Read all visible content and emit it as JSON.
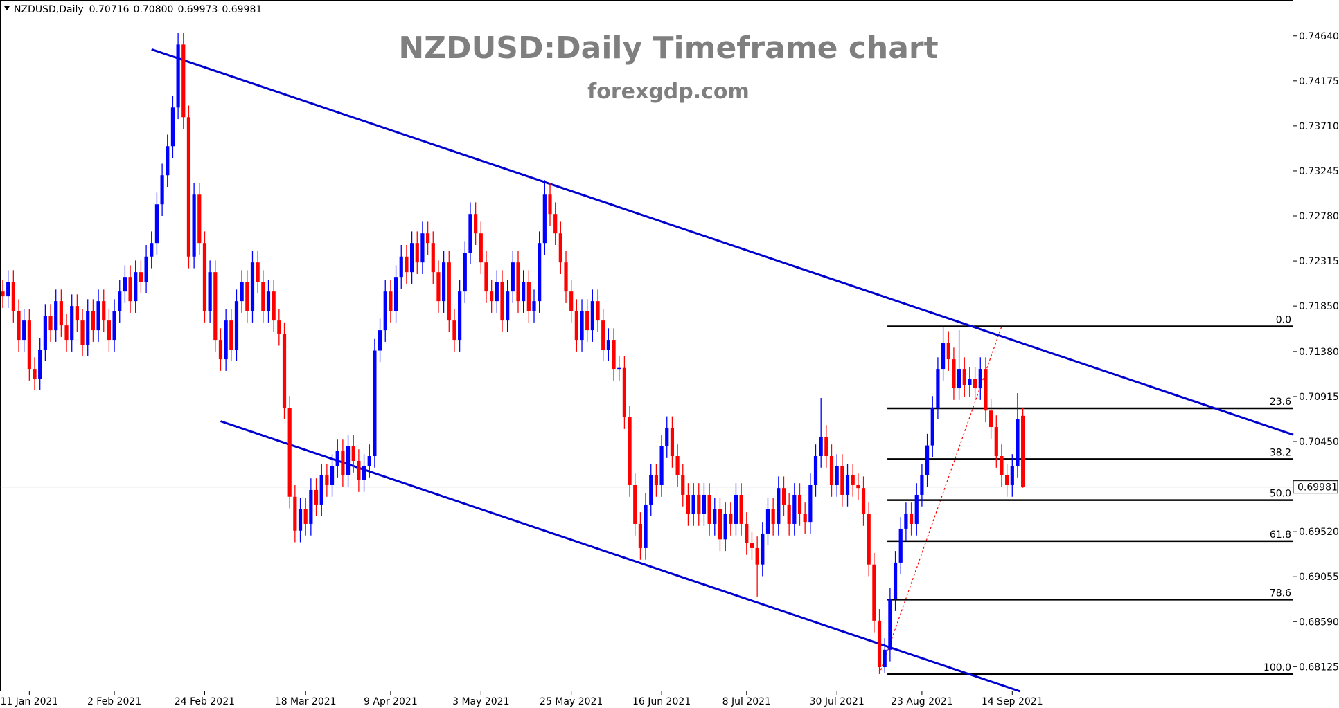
{
  "chart_data": {
    "type": "candlestick",
    "title": "NZDUSD:Daily Timeframe chart",
    "subtitle": "forexgdp.com",
    "symbol": "NZDUSD,Daily",
    "header_labels": [
      "0.70716",
      "0.70800",
      "0.69973",
      "0.69981"
    ],
    "categories": [
      null,
      null,
      null,
      null,
      null,
      "11 Jan 2021",
      null,
      null,
      null,
      null,
      null,
      null,
      null,
      null,
      null,
      null,
      null,
      null,
      null,
      null,
      null,
      "2 Feb 2021",
      null,
      null,
      null,
      null,
      null,
      null,
      null,
      null,
      null,
      null,
      null,
      null,
      null,
      null,
      null,
      null,
      "24 Feb 2021",
      null,
      null,
      null,
      null,
      null,
      null,
      null,
      null,
      null,
      null,
      null,
      null,
      null,
      null,
      null,
      null,
      null,
      null,
      "18 Mar 2021",
      null,
      null,
      null,
      null,
      null,
      null,
      null,
      null,
      null,
      null,
      null,
      null,
      null,
      null,
      null,
      "9 Apr 2021",
      null,
      null,
      null,
      null,
      null,
      null,
      null,
      null,
      null,
      null,
      null,
      null,
      null,
      null,
      null,
      null,
      "3 May 2021",
      null,
      null,
      null,
      null,
      null,
      null,
      null,
      null,
      null,
      null,
      null,
      null,
      null,
      null,
      null,
      null,
      "25 May 2021",
      null,
      null,
      null,
      null,
      null,
      null,
      null,
      null,
      null,
      null,
      null,
      null,
      null,
      null,
      null,
      null,
      "16 Jun 2021",
      null,
      null,
      null,
      null,
      null,
      null,
      null,
      null,
      null,
      null,
      null,
      null,
      null,
      null,
      null,
      "8 Jul 2021",
      null,
      null,
      null,
      null,
      null,
      null,
      null,
      null,
      null,
      null,
      null,
      null,
      null,
      null,
      null,
      null,
      "30 Jul 2021",
      null,
      null,
      null,
      null,
      null,
      null,
      null,
      null,
      null,
      null,
      null,
      null,
      null,
      null,
      null,
      "23 Aug 2021",
      null,
      null,
      null,
      null,
      null,
      null,
      null,
      null,
      null,
      null,
      null,
      null,
      null,
      null,
      null,
      null,
      "14 Sep 2021",
      null,
      null,
      null
    ],
    "candles": [
      [
        0.72,
        0.7212,
        0.7183,
        0.7195
      ],
      [
        0.7195,
        0.7222,
        0.7183,
        0.721
      ],
      [
        0.721,
        0.7222,
        0.7168,
        0.718
      ],
      [
        0.718,
        0.7192,
        0.7138,
        0.715
      ],
      [
        0.715,
        0.7182,
        0.7138,
        0.717
      ],
      [
        0.717,
        0.7182,
        0.7108,
        0.712
      ],
      [
        0.712,
        0.7132,
        0.7098,
        0.711
      ],
      [
        0.711,
        0.7152,
        0.7098,
        0.714
      ],
      [
        0.714,
        0.7187,
        0.7128,
        0.7175
      ],
      [
        0.7175,
        0.7187,
        0.7148,
        0.716
      ],
      [
        0.716,
        0.7202,
        0.7148,
        0.719
      ],
      [
        0.719,
        0.7202,
        0.7153,
        0.7165
      ],
      [
        0.7165,
        0.7177,
        0.7138,
        0.715
      ],
      [
        0.715,
        0.7197,
        0.7138,
        0.7185
      ],
      [
        0.7185,
        0.7197,
        0.7158,
        0.717
      ],
      [
        0.717,
        0.7182,
        0.7133,
        0.7145
      ],
      [
        0.7145,
        0.7192,
        0.7133,
        0.718
      ],
      [
        0.718,
        0.7192,
        0.7148,
        0.716
      ],
      [
        0.716,
        0.7202,
        0.7148,
        0.719
      ],
      [
        0.719,
        0.7202,
        0.7158,
        0.717
      ],
      [
        0.717,
        0.7182,
        0.7138,
        0.715
      ],
      [
        0.715,
        0.7192,
        0.7138,
        0.718
      ],
      [
        0.718,
        0.7212,
        0.7168,
        0.72
      ],
      [
        0.72,
        0.7227,
        0.7188,
        0.7215
      ],
      [
        0.7215,
        0.7227,
        0.7178,
        0.719
      ],
      [
        0.719,
        0.7232,
        0.7178,
        0.722
      ],
      [
        0.722,
        0.7232,
        0.7198,
        0.721
      ],
      [
        0.721,
        0.7248,
        0.7198,
        0.7236
      ],
      [
        0.7236,
        0.7262,
        0.7224,
        0.725
      ],
      [
        0.725,
        0.7302,
        0.7238,
        0.729
      ],
      [
        0.729,
        0.7332,
        0.7278,
        0.732
      ],
      [
        0.732,
        0.7362,
        0.7308,
        0.735
      ],
      [
        0.735,
        0.7402,
        0.7338,
        0.739
      ],
      [
        0.739,
        0.7467,
        0.7378,
        0.7455
      ],
      [
        0.7455,
        0.7467,
        0.7368,
        0.738
      ],
      [
        0.738,
        0.7392,
        0.7224,
        0.7236
      ],
      [
        0.7236,
        0.7312,
        0.7224,
        0.73
      ],
      [
        0.73,
        0.7312,
        0.7238,
        0.725
      ],
      [
        0.725,
        0.7262,
        0.7168,
        0.718
      ],
      [
        0.718,
        0.7232,
        0.7168,
        0.722
      ],
      [
        0.722,
        0.7232,
        0.7138,
        0.715
      ],
      [
        0.715,
        0.7162,
        0.7118,
        0.713
      ],
      [
        0.713,
        0.7182,
        0.7118,
        0.717
      ],
      [
        0.717,
        0.7182,
        0.7128,
        0.714
      ],
      [
        0.714,
        0.7202,
        0.7128,
        0.719
      ],
      [
        0.719,
        0.7222,
        0.7178,
        0.721
      ],
      [
        0.721,
        0.7222,
        0.7168,
        0.718
      ],
      [
        0.718,
        0.7242,
        0.7168,
        0.723
      ],
      [
        0.723,
        0.7242,
        0.7198,
        0.721
      ],
      [
        0.721,
        0.7222,
        0.7168,
        0.718
      ],
      [
        0.718,
        0.7212,
        0.7168,
        0.72
      ],
      [
        0.72,
        0.7212,
        0.7158,
        0.717
      ],
      [
        0.717,
        0.7182,
        0.7144,
        0.7156
      ],
      [
        0.7156,
        0.7168,
        0.7068,
        0.708
      ],
      [
        0.708,
        0.7092,
        0.6976,
        0.6988
      ],
      [
        0.6988,
        0.7,
        0.6941,
        0.6953
      ],
      [
        0.6953,
        0.6987,
        0.6941,
        0.6975
      ],
      [
        0.6975,
        0.6987,
        0.6948,
        0.696
      ],
      [
        0.696,
        0.7007,
        0.6948,
        0.6995
      ],
      [
        0.6995,
        0.7007,
        0.6968,
        0.698
      ],
      [
        0.698,
        0.7022,
        0.6968,
        0.701
      ],
      [
        0.701,
        0.7022,
        0.6988,
        0.7
      ],
      [
        0.7,
        0.7032,
        0.6988,
        0.702
      ],
      [
        0.702,
        0.7047,
        0.7008,
        0.7035
      ],
      [
        0.7035,
        0.7047,
        0.6998,
        0.701
      ],
      [
        0.701,
        0.7052,
        0.6998,
        0.704
      ],
      [
        0.704,
        0.7052,
        0.7013,
        0.7025
      ],
      [
        0.7025,
        0.7037,
        0.6993,
        0.7005
      ],
      [
        0.7005,
        0.7032,
        0.6993,
        0.702
      ],
      [
        0.702,
        0.7042,
        0.7008,
        0.703
      ],
      [
        0.703,
        0.7151,
        0.7018,
        0.7139
      ],
      [
        0.7139,
        0.7172,
        0.7127,
        0.716
      ],
      [
        0.716,
        0.7212,
        0.7148,
        0.72
      ],
      [
        0.72,
        0.7212,
        0.7168,
        0.718
      ],
      [
        0.718,
        0.7227,
        0.7168,
        0.7215
      ],
      [
        0.7215,
        0.7248,
        0.7203,
        0.7236
      ],
      [
        0.7236,
        0.7248,
        0.7208,
        0.722
      ],
      [
        0.722,
        0.7262,
        0.7208,
        0.725
      ],
      [
        0.725,
        0.7262,
        0.7218,
        0.723
      ],
      [
        0.723,
        0.7272,
        0.7218,
        0.726
      ],
      [
        0.726,
        0.7272,
        0.7238,
        0.725
      ],
      [
        0.725,
        0.7262,
        0.7208,
        0.722
      ],
      [
        0.722,
        0.7232,
        0.7178,
        0.719
      ],
      [
        0.719,
        0.7242,
        0.7178,
        0.723
      ],
      [
        0.723,
        0.7242,
        0.7158,
        0.717
      ],
      [
        0.717,
        0.7182,
        0.7138,
        0.715
      ],
      [
        0.715,
        0.7212,
        0.7138,
        0.72
      ],
      [
        0.72,
        0.7252,
        0.7188,
        0.724
      ],
      [
        0.724,
        0.7292,
        0.7228,
        0.728
      ],
      [
        0.728,
        0.7292,
        0.7248,
        0.726
      ],
      [
        0.726,
        0.7272,
        0.7218,
        0.723
      ],
      [
        0.723,
        0.7242,
        0.7188,
        0.72
      ],
      [
        0.72,
        0.7212,
        0.7178,
        0.719
      ],
      [
        0.719,
        0.7222,
        0.7178,
        0.721
      ],
      [
        0.721,
        0.7222,
        0.7158,
        0.717
      ],
      [
        0.717,
        0.7212,
        0.7158,
        0.72
      ],
      [
        0.72,
        0.7242,
        0.7188,
        0.723
      ],
      [
        0.723,
        0.7242,
        0.7178,
        0.719
      ],
      [
        0.719,
        0.7222,
        0.7178,
        0.721
      ],
      [
        0.721,
        0.7222,
        0.7168,
        0.718
      ],
      [
        0.718,
        0.7202,
        0.7168,
        0.719
      ],
      [
        0.719,
        0.7262,
        0.7178,
        0.725
      ],
      [
        0.725,
        0.7315,
        0.7238,
        0.73
      ],
      [
        0.73,
        0.7312,
        0.7268,
        0.728
      ],
      [
        0.728,
        0.7292,
        0.7248,
        0.726
      ],
      [
        0.726,
        0.7272,
        0.7218,
        0.723
      ],
      [
        0.723,
        0.7242,
        0.7188,
        0.72
      ],
      [
        0.72,
        0.7212,
        0.7168,
        0.718
      ],
      [
        0.718,
        0.7192,
        0.7138,
        0.715
      ],
      [
        0.715,
        0.7192,
        0.7138,
        0.718
      ],
      [
        0.718,
        0.7192,
        0.7148,
        0.716
      ],
      [
        0.716,
        0.7202,
        0.7148,
        0.719
      ],
      [
        0.719,
        0.7202,
        0.7158,
        0.717
      ],
      [
        0.717,
        0.7182,
        0.7128,
        0.714
      ],
      [
        0.714,
        0.7162,
        0.7128,
        0.715
      ],
      [
        0.715,
        0.7162,
        0.7108,
        0.712
      ],
      [
        0.712,
        0.7133,
        0.7108,
        0.7121
      ],
      [
        0.7121,
        0.7133,
        0.7058,
        0.707
      ],
      [
        0.707,
        0.7082,
        0.6988,
        0.7
      ],
      [
        0.7,
        0.7012,
        0.6948,
        0.696
      ],
      [
        0.696,
        0.6972,
        0.6923,
        0.6935
      ],
      [
        0.6935,
        0.6992,
        0.6923,
        0.698
      ],
      [
        0.698,
        0.7022,
        0.6968,
        0.701
      ],
      [
        0.701,
        0.7022,
        0.6988,
        0.7
      ],
      [
        0.7,
        0.7052,
        0.6988,
        0.704
      ],
      [
        0.704,
        0.7071,
        0.7028,
        0.7059
      ],
      [
        0.7059,
        0.7071,
        0.7018,
        0.703
      ],
      [
        0.703,
        0.7042,
        0.6998,
        0.701
      ],
      [
        0.701,
        0.7022,
        0.6978,
        0.699
      ],
      [
        0.699,
        0.7002,
        0.6958,
        0.697
      ],
      [
        0.697,
        0.7002,
        0.6958,
        0.699
      ],
      [
        0.699,
        0.7002,
        0.6958,
        0.697
      ],
      [
        0.697,
        0.7002,
        0.6958,
        0.699
      ],
      [
        0.699,
        0.7002,
        0.6948,
        0.696
      ],
      [
        0.696,
        0.6987,
        0.6948,
        0.6975
      ],
      [
        0.6975,
        0.6987,
        0.6932,
        0.6944
      ],
      [
        0.6944,
        0.6982,
        0.6932,
        0.697
      ],
      [
        0.697,
        0.6982,
        0.6948,
        0.696
      ],
      [
        0.696,
        0.7002,
        0.6948,
        0.699
      ],
      [
        0.699,
        0.7002,
        0.6948,
        0.696
      ],
      [
        0.696,
        0.6972,
        0.6928,
        0.694
      ],
      [
        0.694,
        0.6952,
        0.6923,
        0.6935
      ],
      [
        0.6935,
        0.6947,
        0.6885,
        0.6918
      ],
      [
        0.6918,
        0.6962,
        0.6906,
        0.695
      ],
      [
        0.695,
        0.6987,
        0.6938,
        0.6975
      ],
      [
        0.6975,
        0.6987,
        0.6948,
        0.696
      ],
      [
        0.696,
        0.7009,
        0.6948,
        0.6997
      ],
      [
        0.6997,
        0.7009,
        0.6968,
        0.698
      ],
      [
        0.698,
        0.6992,
        0.6948,
        0.696
      ],
      [
        0.696,
        0.7002,
        0.6948,
        0.699
      ],
      [
        0.699,
        0.7002,
        0.6958,
        0.697
      ],
      [
        0.697,
        0.6982,
        0.695,
        0.6962
      ],
      [
        0.6962,
        0.7012,
        0.695,
        0.7
      ],
      [
        0.7,
        0.7042,
        0.6988,
        0.703
      ],
      [
        0.703,
        0.709,
        0.7018,
        0.705
      ],
      [
        0.705,
        0.7062,
        0.7018,
        0.703
      ],
      [
        0.703,
        0.7042,
        0.6988,
        0.7
      ],
      [
        0.7,
        0.7032,
        0.6988,
        0.702
      ],
      [
        0.702,
        0.7032,
        0.6978,
        0.699
      ],
      [
        0.699,
        0.7022,
        0.6978,
        0.701
      ],
      [
        0.701,
        0.7022,
        0.6988,
        0.7
      ],
      [
        0.7,
        0.7012,
        0.6985,
        0.6997
      ],
      [
        0.6997,
        0.7009,
        0.6958,
        0.697
      ],
      [
        0.697,
        0.6982,
        0.6906,
        0.6918
      ],
      [
        0.6918,
        0.693,
        0.6848,
        0.686
      ],
      [
        0.686,
        0.6872,
        0.6805,
        0.6812
      ],
      [
        0.6812,
        0.6842,
        0.6806,
        0.683
      ],
      [
        0.683,
        0.6894,
        0.6818,
        0.6882
      ],
      [
        0.6882,
        0.6932,
        0.687,
        0.692
      ],
      [
        0.692,
        0.6967,
        0.6908,
        0.6955
      ],
      [
        0.6955,
        0.6982,
        0.6943,
        0.697
      ],
      [
        0.697,
        0.6982,
        0.6948,
        0.696
      ],
      [
        0.696,
        0.7002,
        0.6948,
        0.699
      ],
      [
        0.699,
        0.7022,
        0.6978,
        0.701
      ],
      [
        0.701,
        0.7053,
        0.6998,
        0.7041
      ],
      [
        0.7041,
        0.7092,
        0.7029,
        0.708
      ],
      [
        0.708,
        0.7132,
        0.7068,
        0.712
      ],
      [
        0.712,
        0.7164,
        0.7108,
        0.7147
      ],
      [
        0.7147,
        0.7159,
        0.7118,
        0.713
      ],
      [
        0.713,
        0.7142,
        0.7088,
        0.71
      ],
      [
        0.71,
        0.716,
        0.7088,
        0.712
      ],
      [
        0.712,
        0.7132,
        0.7091,
        0.7103
      ],
      [
        0.7103,
        0.7122,
        0.7091,
        0.711
      ],
      [
        0.711,
        0.7122,
        0.7088,
        0.71
      ],
      [
        0.71,
        0.7132,
        0.7088,
        0.712
      ],
      [
        0.712,
        0.7132,
        0.7065,
        0.7077
      ],
      [
        0.7077,
        0.7089,
        0.7048,
        0.706
      ],
      [
        0.706,
        0.7072,
        0.7018,
        0.703
      ],
      [
        0.703,
        0.7042,
        0.6998,
        0.701
      ],
      [
        0.701,
        0.7022,
        0.6988,
        0.7
      ],
      [
        0.7,
        0.7032,
        0.6988,
        0.702
      ],
      [
        0.702,
        0.7095,
        0.7008,
        0.7068
      ],
      [
        0.70716,
        0.708,
        0.69973,
        0.69981
      ]
    ],
    "colors": {
      "up": "#0000ff",
      "down": "#ff0000"
    },
    "ylim": [
      0.6787,
      0.7501
    ],
    "yticks": [
      {
        "value": 0.7464,
        "label": "0.74640"
      },
      0.74175,
      {
        "value": 0.7371,
        "label": "0.73710"
      },
      0.73245,
      {
        "value": 0.7278,
        "label": "0.72780"
      },
      0.72315,
      {
        "value": 0.7185,
        "label": "0.71850"
      },
      {
        "value": 0.7138,
        "label": "0.71380"
      },
      0.70915,
      {
        "value": 0.7045,
        "label": "0.70450"
      },
      {
        "value": 0.6952,
        "label": "0.69520"
      },
      0.69055,
      {
        "value": 0.6859,
        "label": "0.68590"
      },
      0.68125
    ],
    "trendlines": [
      {
        "x": [
          28,
          243
        ],
        "y": [
          0.745,
          0.7052
        ],
        "color": "#0000cd"
      },
      {
        "x": [
          41,
          191.5
        ],
        "y": [
          0.7066,
          0.6787
        ],
        "color": "#0000cd"
      }
    ],
    "fibonacci": {
      "high": 0.7164,
      "low": 0.6805,
      "color": "#000000",
      "guide_color": "#ff0000",
      "levels": [
        {
          "value": 0,
          "label": "0.0"
        },
        23.6,
        38.2,
        {
          "value": 50,
          "label": "50.0"
        },
        61.8,
        78.6,
        {
          "value": 100,
          "label": "100.0"
        }
      ]
    },
    "price_line_color": "#a0aab4"
  }
}
